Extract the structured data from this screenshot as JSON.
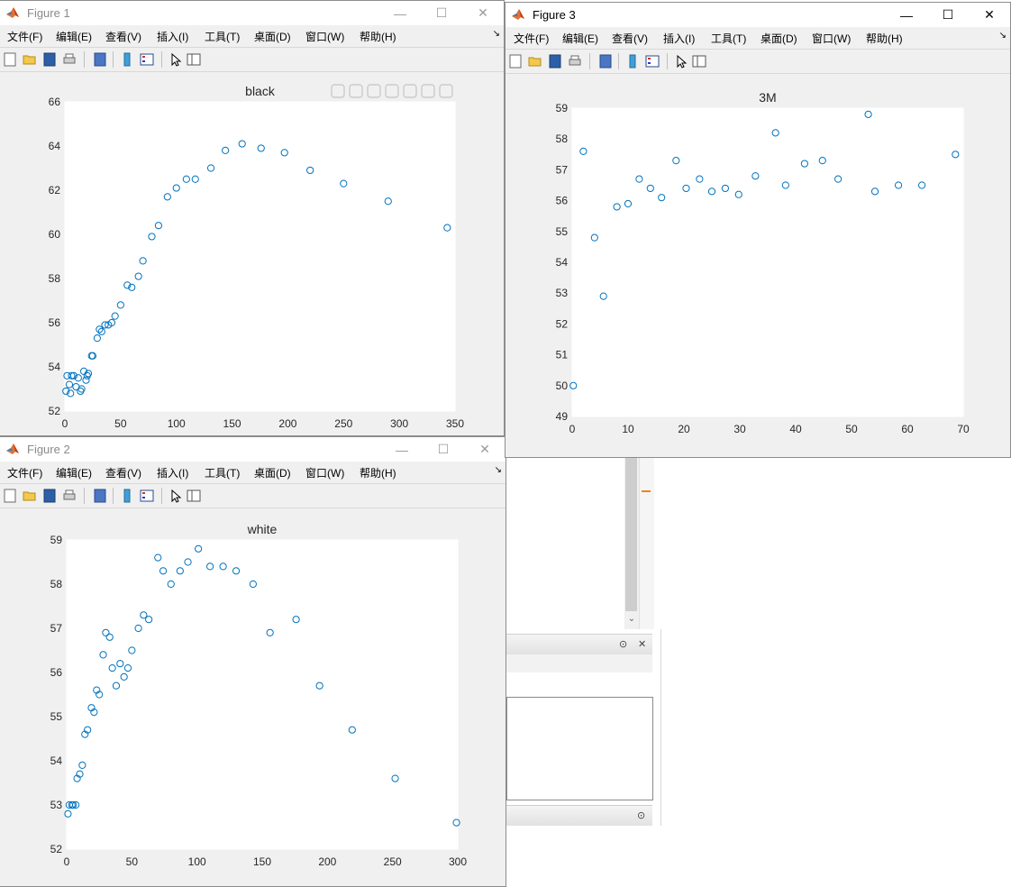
{
  "menus": [
    "文件(F)",
    "编辑(E)",
    "查看(V)",
    "插入(I)",
    "工具(T)",
    "桌面(D)",
    "窗口(W)",
    "帮助(H)"
  ],
  "menu_overflow": "↘",
  "window_buttons": {
    "minimize": "—",
    "maximize": "☐",
    "close": "✕"
  },
  "background": {
    "scroll_down": "⌄",
    "panel_collapse": "⊙",
    "panel_close": "✕"
  },
  "colors": {
    "marker": "#0072BD",
    "figure_bg": "#f0f0f0",
    "axes_bg": "#ffffff",
    "highlight": "#f0830f"
  },
  "figures": [
    {
      "id": "fig1",
      "title": "Figure 1",
      "active": false,
      "chart_data": {
        "type": "scatter",
        "title": "black",
        "xlim": [
          0,
          350
        ],
        "ylim": [
          52,
          66
        ],
        "xticks": [
          0,
          50,
          100,
          150,
          200,
          250,
          300,
          350
        ],
        "yticks": [
          52,
          54,
          56,
          58,
          60,
          62,
          64,
          66
        ],
        "x": [
          1,
          2,
          4,
          5,
          6,
          8,
          10,
          12,
          14,
          15,
          17,
          19,
          20,
          21,
          24,
          25,
          29,
          31,
          33,
          36,
          39,
          42,
          45,
          50,
          56,
          60,
          66,
          70,
          78,
          84,
          92,
          100,
          109,
          117,
          131,
          144,
          159,
          176,
          197,
          220,
          250,
          290,
          343
        ],
        "y": [
          52.9,
          53.6,
          53.2,
          52.8,
          53.6,
          53.6,
          53.1,
          53.5,
          52.9,
          53.0,
          53.8,
          53.4,
          53.6,
          53.7,
          54.5,
          54.5,
          55.3,
          55.7,
          55.6,
          55.9,
          55.9,
          56.0,
          56.3,
          56.8,
          57.7,
          57.6,
          58.1,
          58.8,
          59.9,
          60.4,
          61.7,
          62.1,
          62.5,
          62.5,
          63.0,
          63.8,
          64.1,
          63.9,
          63.7,
          62.9,
          62.3,
          61.5,
          60.3
        ]
      }
    },
    {
      "id": "fig2",
      "title": "Figure 2",
      "active": false,
      "chart_data": {
        "type": "scatter",
        "title": "white",
        "xlim": [
          0,
          300
        ],
        "ylim": [
          52,
          59
        ],
        "xticks": [
          0,
          50,
          100,
          150,
          200,
          250,
          300
        ],
        "yticks": [
          52,
          53,
          54,
          55,
          56,
          57,
          58,
          59
        ],
        "x": [
          1,
          2,
          4,
          5,
          7,
          8,
          10,
          12,
          14,
          16,
          19,
          21,
          23,
          25,
          28,
          30,
          33,
          35,
          38,
          41,
          44,
          47,
          50,
          55,
          59,
          63,
          70,
          74,
          80,
          87,
          93,
          101,
          110,
          120,
          130,
          143,
          156,
          176,
          194,
          219,
          252,
          299
        ],
        "y": [
          52.8,
          53.0,
          53.0,
          53.0,
          53.0,
          53.6,
          53.7,
          53.9,
          54.6,
          54.7,
          55.2,
          55.1,
          55.6,
          55.5,
          56.4,
          56.9,
          56.8,
          56.1,
          55.7,
          56.2,
          55.9,
          56.1,
          56.5,
          57.0,
          57.3,
          57.2,
          58.6,
          58.3,
          58.0,
          58.3,
          58.5,
          58.8,
          58.4,
          58.4,
          58.3,
          58.0,
          56.9,
          57.2,
          55.7,
          54.7,
          53.6,
          52.6
        ]
      }
    },
    {
      "id": "fig3",
      "title": "Figure 3",
      "active": true,
      "chart_data": {
        "type": "scatter",
        "title": "3M",
        "xlim": [
          0,
          70
        ],
        "ylim": [
          49,
          59
        ],
        "xticks": [
          0,
          10,
          20,
          30,
          40,
          50,
          60,
          70
        ],
        "yticks": [
          49,
          50,
          51,
          52,
          53,
          54,
          55,
          56,
          57,
          58,
          59
        ],
        "x": [
          0.2,
          2,
          4,
          5.6,
          8,
          10,
          12,
          14,
          16,
          18.6,
          20.4,
          22.8,
          25,
          27.4,
          29.8,
          32.8,
          36.4,
          38.2,
          41.6,
          44.8,
          47.6,
          53,
          54.2,
          58.4,
          62.6,
          68.6
        ],
        "y": [
          50.0,
          57.6,
          54.8,
          52.9,
          55.8,
          55.9,
          56.7,
          56.4,
          56.1,
          57.3,
          56.4,
          56.7,
          56.3,
          56.4,
          56.2,
          56.8,
          58.2,
          56.5,
          57.2,
          57.3,
          56.7,
          58.8,
          56.3,
          56.5,
          56.5,
          57.5
        ]
      }
    }
  ]
}
